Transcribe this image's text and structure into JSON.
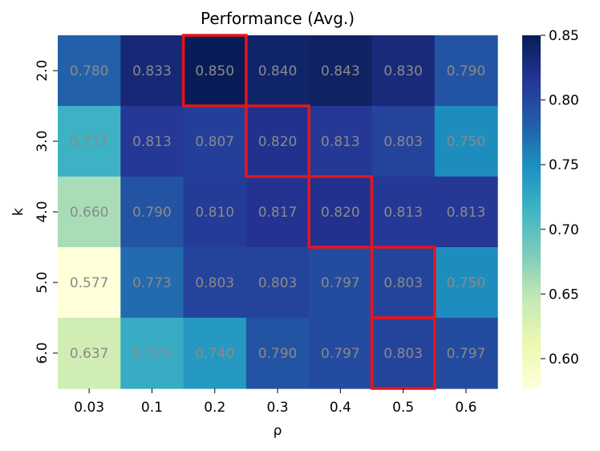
{
  "chart_data": {
    "type": "heatmap",
    "title": "Performance (Avg.)",
    "xlabel": "ρ",
    "ylabel": "k",
    "x_categories": [
      "0.03",
      "0.1",
      "0.2",
      "0.3",
      "0.4",
      "0.5",
      "0.6"
    ],
    "y_categories": [
      "2.0",
      "3.0",
      "4.0",
      "5.0",
      "6.0"
    ],
    "values": [
      [
        0.78,
        0.833,
        0.85,
        0.84,
        0.843,
        0.83,
        0.79
      ],
      [
        0.717,
        0.813,
        0.807,
        0.82,
        0.813,
        0.803,
        0.75
      ],
      [
        0.66,
        0.79,
        0.81,
        0.817,
        0.82,
        0.813,
        0.813
      ],
      [
        0.577,
        0.773,
        0.803,
        0.803,
        0.797,
        0.803,
        0.75
      ],
      [
        0.637,
        0.723,
        0.74,
        0.79,
        0.797,
        0.803,
        0.797
      ]
    ],
    "value_labels": [
      [
        "0.780",
        "0.833",
        "0.850",
        "0.840",
        "0.843",
        "0.830",
        "0.790"
      ],
      [
        "0.717",
        "0.813",
        "0.807",
        "0.820",
        "0.813",
        "0.803",
        "0.750"
      ],
      [
        "0.660",
        "0.790",
        "0.810",
        "0.817",
        "0.820",
        "0.813",
        "0.813"
      ],
      [
        "0.577",
        "0.773",
        "0.803",
        "0.803",
        "0.797",
        "0.803",
        "0.750"
      ],
      [
        "0.637",
        "0.723",
        "0.740",
        "0.790",
        "0.797",
        "0.803",
        "0.797"
      ]
    ],
    "colormap": "YlGnBu",
    "color_range": [
      0.577,
      0.85
    ],
    "colorbar_ticks": [
      0.85,
      0.8,
      0.75,
      0.7,
      0.65,
      0.6
    ],
    "colorbar_tick_labels": [
      "0.85",
      "0.80",
      "0.75",
      "0.70",
      "0.65",
      "0.60"
    ],
    "highlight_color": "#e8141c",
    "highlighted_cells": [
      {
        "row": 0,
        "col": 2
      },
      {
        "row": 1,
        "col": 3
      },
      {
        "row": 2,
        "col": 4
      },
      {
        "row": 3,
        "col": 5
      },
      {
        "row": 4,
        "col": 5
      }
    ]
  }
}
